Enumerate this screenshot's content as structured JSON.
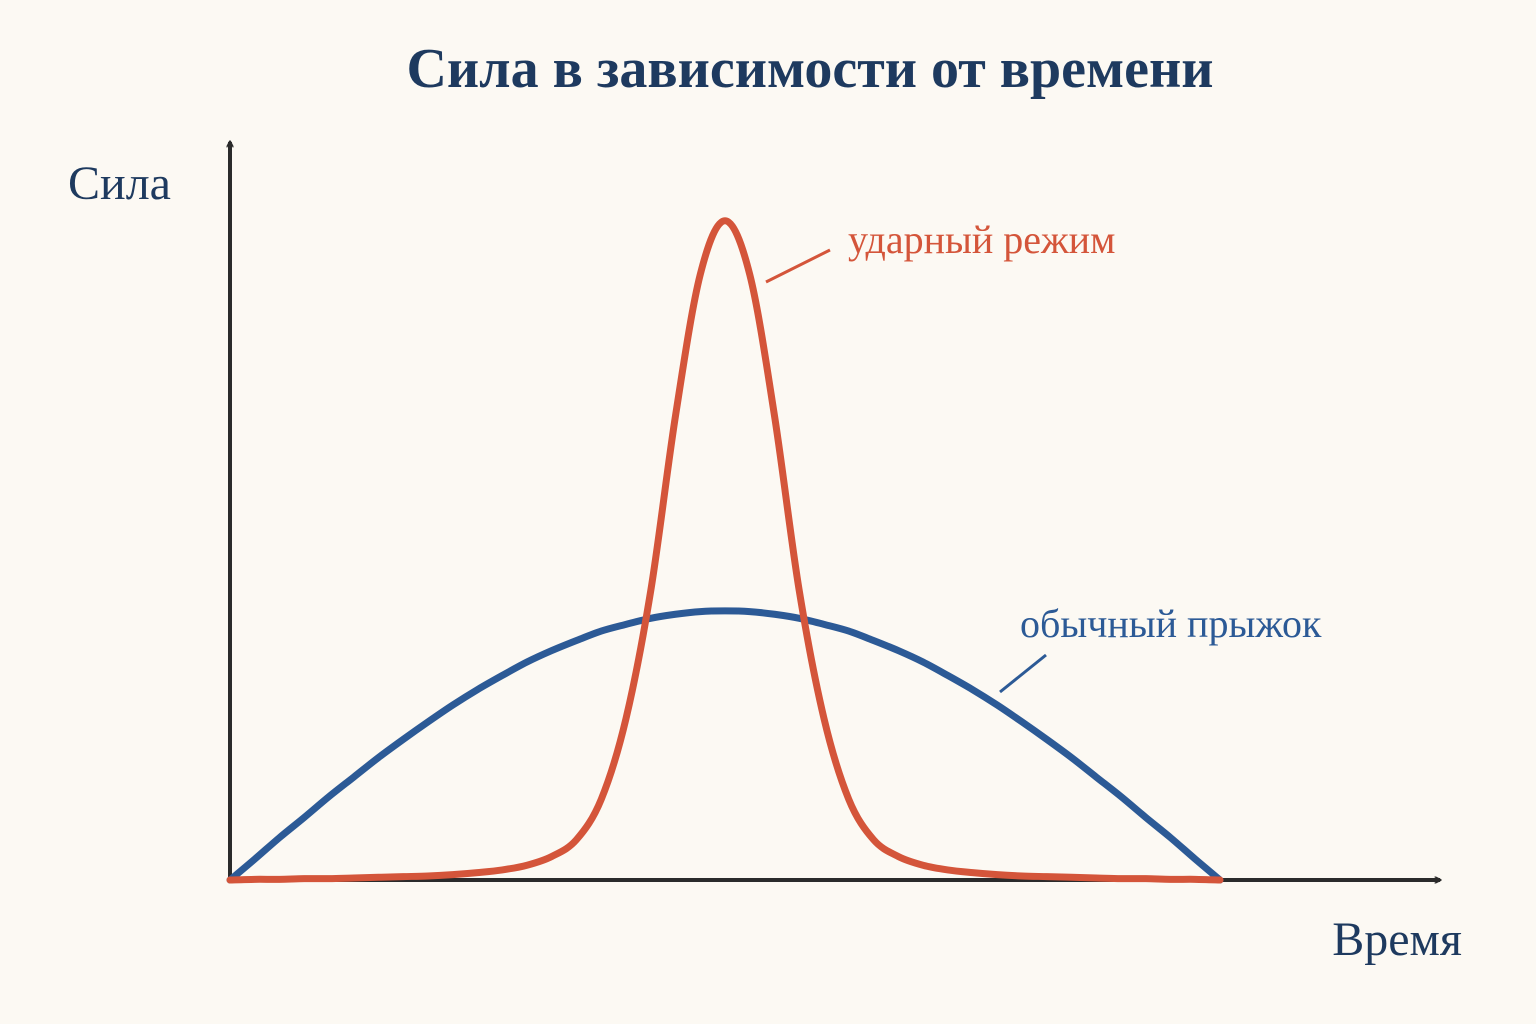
{
  "chart_data": {
    "type": "line",
    "title": "Сила в зависимости от времени",
    "x_label": "Время",
    "y_label": "Сила",
    "x": [
      0,
      0.25,
      0.5,
      0.75,
      1,
      1.25,
      1.5,
      1.75,
      2,
      2.25,
      2.5,
      2.75,
      3,
      3.25,
      3.5,
      3.75,
      4,
      4.25,
      4.5,
      4.75,
      5,
      5.25,
      5.5,
      5.75,
      6,
      6.25,
      6.5,
      6.75,
      7,
      7.25,
      7.5,
      7.75,
      8,
      8.25,
      8.5,
      8.75,
      9,
      9.25,
      9.5,
      9.75,
      10
    ],
    "xlim": [
      0,
      12
    ],
    "ylim": [
      0,
      11
    ],
    "series": [
      {
        "name": "обычный прыжок",
        "color": "#2c5a96",
        "values": [
          0,
          0.31,
          0.63,
          0.93,
          1.24,
          1.53,
          1.82,
          2.09,
          2.35,
          2.6,
          2.83,
          3.04,
          3.24,
          3.41,
          3.56,
          3.7,
          3.8,
          3.89,
          3.95,
          3.99,
          4.0,
          3.99,
          3.95,
          3.89,
          3.8,
          3.7,
          3.56,
          3.41,
          3.24,
          3.04,
          2.83,
          2.6,
          2.35,
          2.09,
          1.82,
          1.53,
          1.24,
          0.93,
          0.63,
          0.31,
          0
        ]
      },
      {
        "name": "ударный режим",
        "color": "#d4553a",
        "values": [
          0,
          0.01,
          0.01,
          0.02,
          0.02,
          0.03,
          0.04,
          0.05,
          0.06,
          0.08,
          0.11,
          0.15,
          0.22,
          0.35,
          0.6,
          1.2,
          2.4,
          4.3,
          6.9,
          9.0,
          9.8,
          9.0,
          6.9,
          4.3,
          2.4,
          1.2,
          0.6,
          0.35,
          0.22,
          0.15,
          0.11,
          0.08,
          0.06,
          0.05,
          0.04,
          0.03,
          0.02,
          0.02,
          0.01,
          0.01,
          0
        ]
      }
    ]
  }
}
